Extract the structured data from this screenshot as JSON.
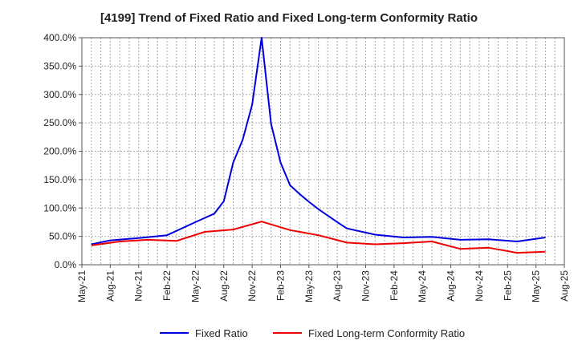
{
  "chart_data": {
    "type": "line",
    "title": "[4199]  Trend of Fixed Ratio and Fixed Long-term Conformity Ratio",
    "xlabel": "",
    "ylabel": "",
    "ylim": [
      0,
      400
    ],
    "grid": true,
    "legend_position": "bottom",
    "x_tick_labels": [
      "May-21",
      "Aug-21",
      "Nov-21",
      "Feb-22",
      "May-22",
      "Aug-22",
      "Nov-22",
      "Feb-23",
      "May-23",
      "Aug-23",
      "Nov-23",
      "Feb-24",
      "May-24",
      "Aug-24",
      "Nov-24",
      "Feb-25",
      "May-25",
      "Aug-25"
    ],
    "y_ticks": [
      {
        "value": 0,
        "label": "0.0%"
      },
      {
        "value": 50,
        "label": "50.0%"
      },
      {
        "value": 100,
        "label": "100.0%"
      },
      {
        "value": 150,
        "label": "150.0%"
      },
      {
        "value": 200,
        "label": "200.0%"
      },
      {
        "value": 250,
        "label": "250.0%"
      },
      {
        "value": 300,
        "label": "300.0%"
      },
      {
        "value": 350,
        "label": "350.0%"
      },
      {
        "value": 400,
        "label": "400.0%"
      }
    ],
    "series": [
      {
        "name": "Fixed Ratio",
        "color": "#0000dd",
        "points": [
          {
            "x": "Jun-21",
            "y": 36
          },
          {
            "x": "Aug-21",
            "y": 43
          },
          {
            "x": "Nov-21",
            "y": 47
          },
          {
            "x": "Feb-22",
            "y": 52
          },
          {
            "x": "May-22",
            "y": 75
          },
          {
            "x": "Jul-22",
            "y": 90
          },
          {
            "x": "Aug-22",
            "y": 112
          },
          {
            "x": "Sep-22",
            "y": 180
          },
          {
            "x": "Oct-22",
            "y": 220
          },
          {
            "x": "Nov-22",
            "y": 282
          },
          {
            "x": "Dec-22",
            "y": 400
          },
          {
            "x": "Jan-23",
            "y": 248
          },
          {
            "x": "Feb-23",
            "y": 180
          },
          {
            "x": "Mar-23",
            "y": 140
          },
          {
            "x": "Apr-23",
            "y": 125
          },
          {
            "x": "May-23",
            "y": 111
          },
          {
            "x": "Jun-23",
            "y": 98
          },
          {
            "x": "Aug-23",
            "y": 75
          },
          {
            "x": "Sep-23",
            "y": 64
          },
          {
            "x": "Dec-23",
            "y": 53
          },
          {
            "x": "Mar-24",
            "y": 48
          },
          {
            "x": "Jun-24",
            "y": 49
          },
          {
            "x": "Sep-24",
            "y": 44
          },
          {
            "x": "Dec-24",
            "y": 45
          },
          {
            "x": "Mar-25",
            "y": 41
          },
          {
            "x": "Jun-25",
            "y": 48
          }
        ]
      },
      {
        "name": "Fixed Long-term Conformity Ratio",
        "color": "#ee0000",
        "points": [
          {
            "x": "Jun-21",
            "y": 34
          },
          {
            "x": "Sep-21",
            "y": 41
          },
          {
            "x": "Dec-21",
            "y": 44
          },
          {
            "x": "Mar-22",
            "y": 42
          },
          {
            "x": "Jun-22",
            "y": 58
          },
          {
            "x": "Sep-22",
            "y": 62
          },
          {
            "x": "Dec-22",
            "y": 76
          },
          {
            "x": "Mar-23",
            "y": 61
          },
          {
            "x": "Jun-23",
            "y": 52
          },
          {
            "x": "Sep-23",
            "y": 39
          },
          {
            "x": "Dec-23",
            "y": 36
          },
          {
            "x": "Mar-24",
            "y": 38
          },
          {
            "x": "Jun-24",
            "y": 41
          },
          {
            "x": "Sep-24",
            "y": 28
          },
          {
            "x": "Dec-24",
            "y": 30
          },
          {
            "x": "Mar-25",
            "y": 21
          },
          {
            "x": "Jun-25",
            "y": 23
          }
        ]
      }
    ]
  }
}
